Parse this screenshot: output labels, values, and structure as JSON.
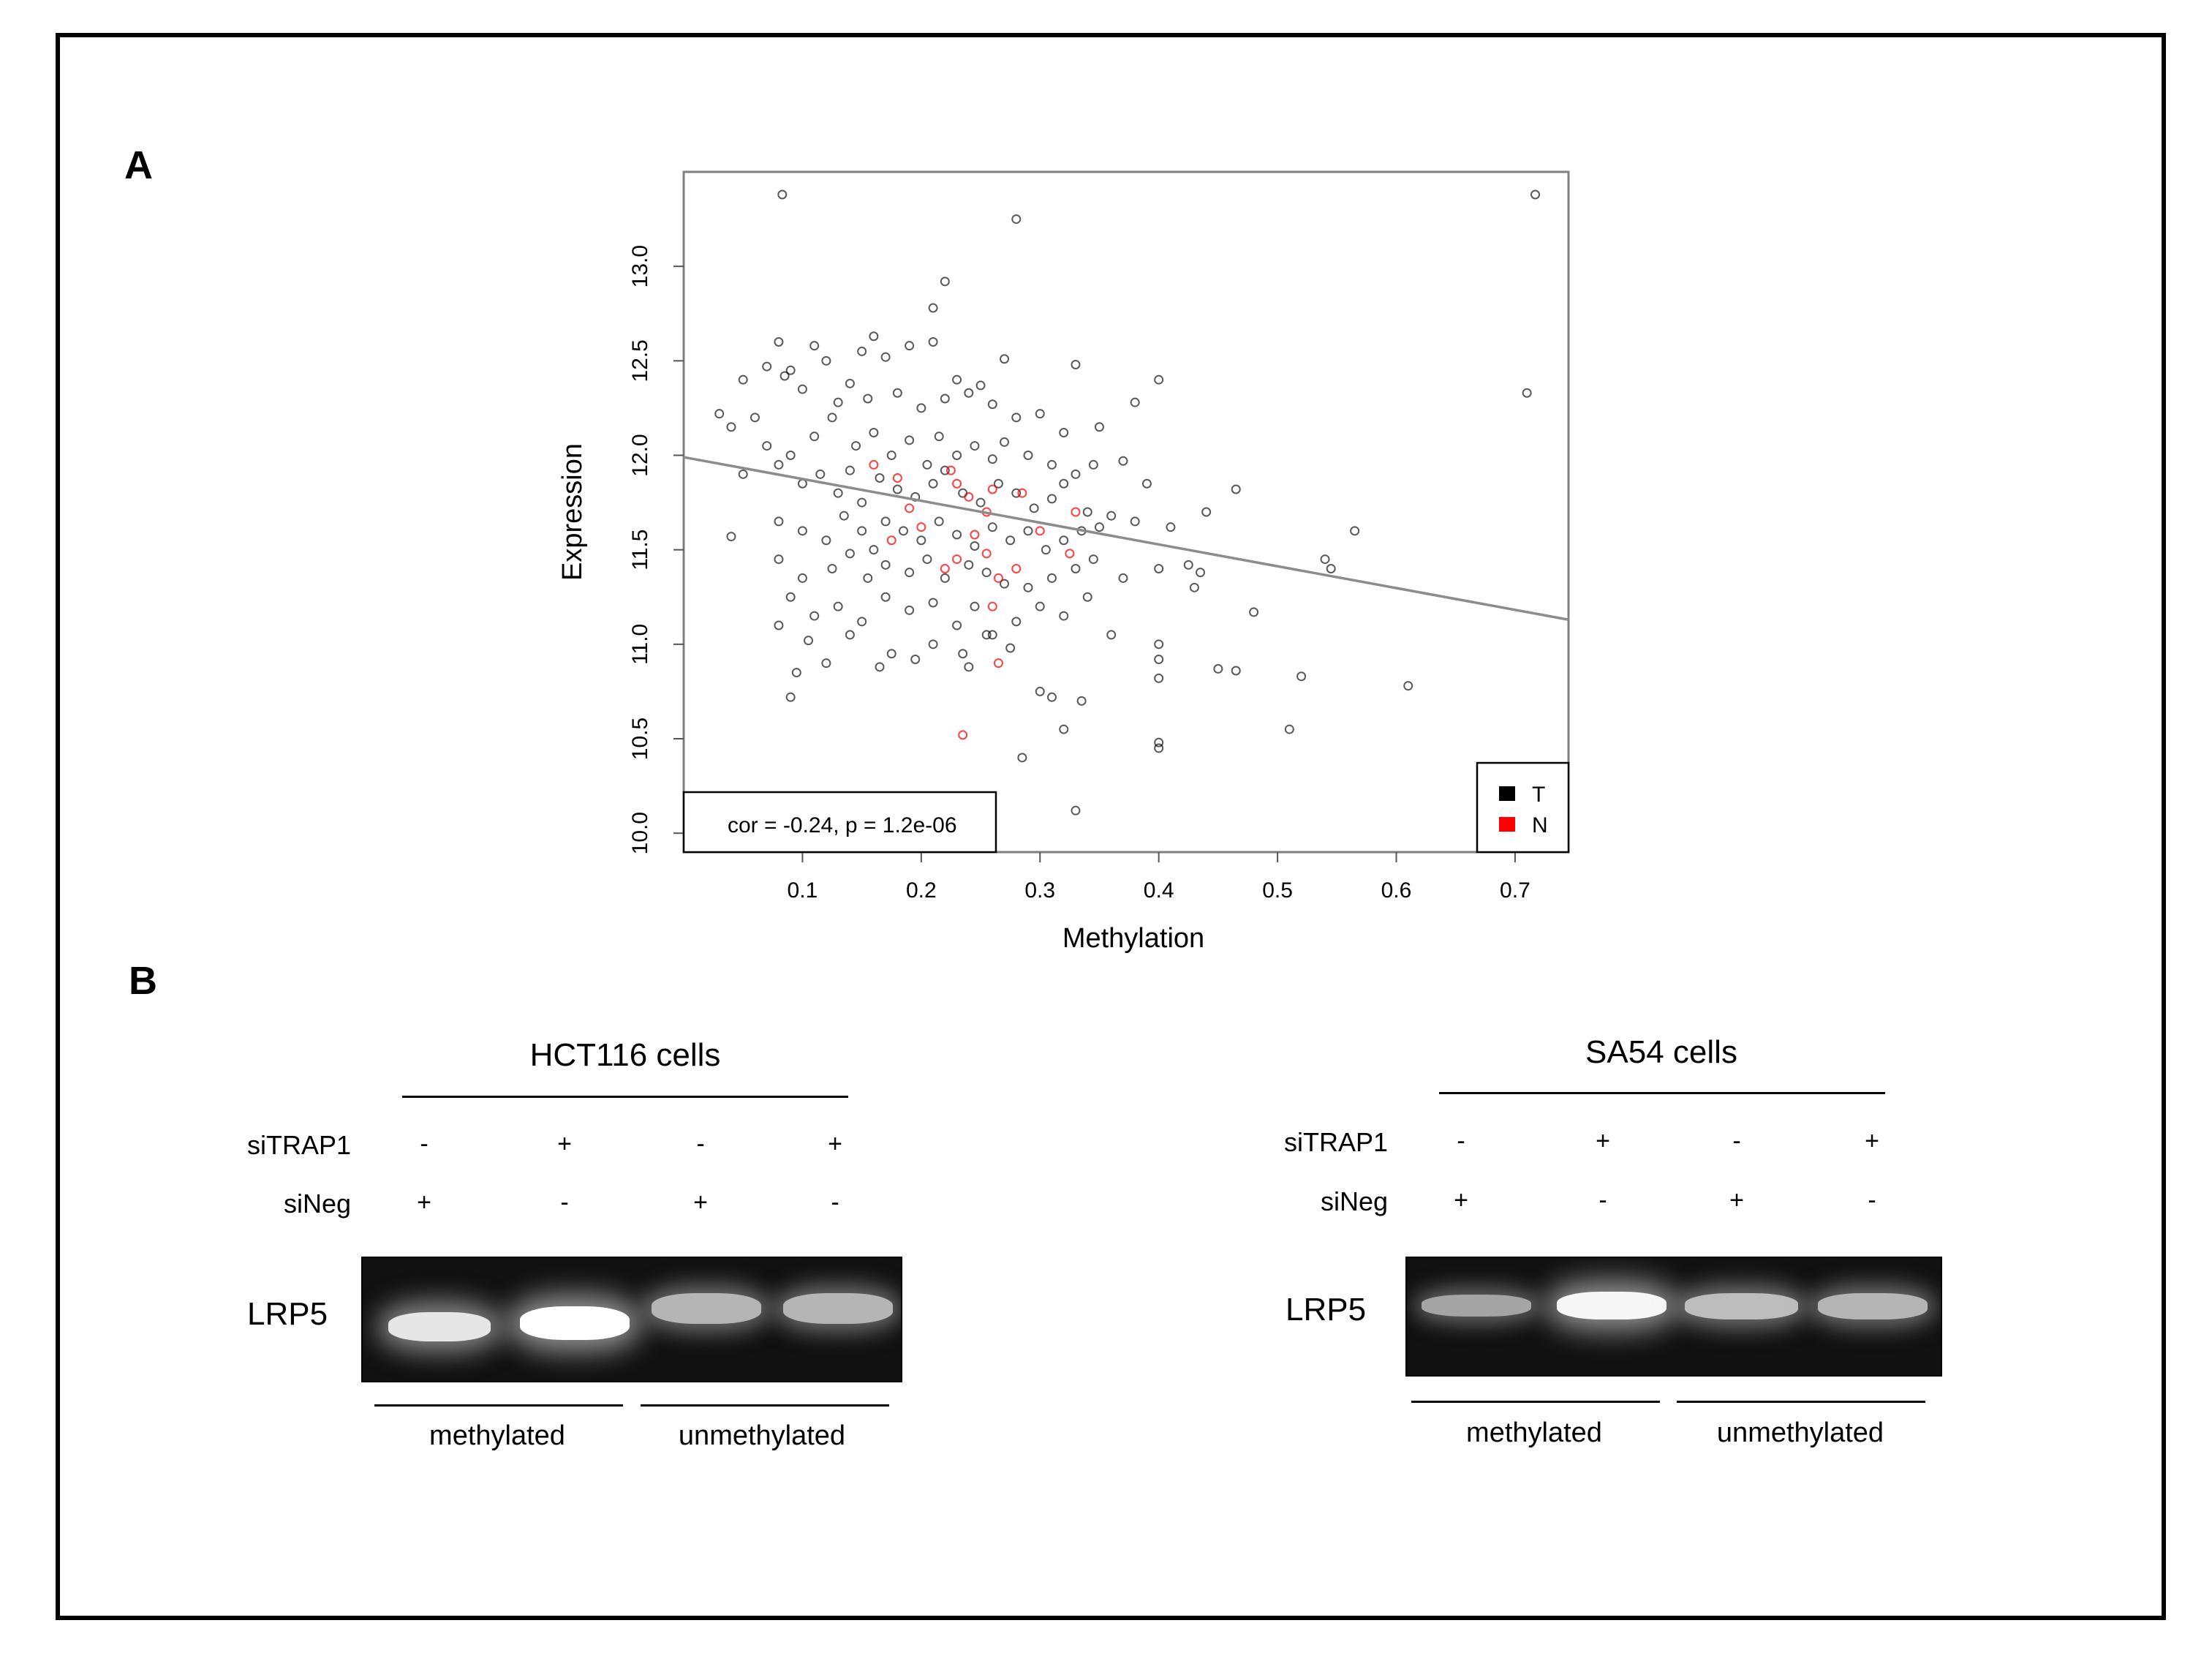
{
  "panels": {
    "a": "A",
    "b": "B"
  },
  "chart_data": {
    "type": "scatter",
    "title": "",
    "xlabel": "Methylation",
    "ylabel": "Expression",
    "xlim": [
      0.0,
      0.745
    ],
    "ylim": [
      9.9,
      13.5
    ],
    "x_ticks": [
      "0.1",
      "0.2",
      "0.3",
      "0.4",
      "0.5",
      "0.6",
      "0.7"
    ],
    "y_ticks": [
      "10.0",
      "10.5",
      "11.0",
      "11.5",
      "12.0",
      "12.5",
      "13.0"
    ],
    "annotation": "cor = -0.24, p = 1.2e-06",
    "legend": {
      "placement": "bottom-right",
      "entries": [
        {
          "label": "T",
          "color": "#000000"
        },
        {
          "label": "N",
          "color": "#ff0000"
        }
      ]
    },
    "trend_line": {
      "x": [
        0.0,
        0.745
      ],
      "y": [
        11.99,
        11.13
      ]
    },
    "series": [
      {
        "name": "T",
        "color": "#000000",
        "points": [
          [
            0.083,
            13.38
          ],
          [
            0.28,
            13.25
          ],
          [
            0.717,
            13.38
          ],
          [
            0.22,
            12.92
          ],
          [
            0.21,
            12.78
          ],
          [
            0.71,
            12.33
          ],
          [
            0.08,
            12.6
          ],
          [
            0.11,
            12.58
          ],
          [
            0.16,
            12.63
          ],
          [
            0.19,
            12.58
          ],
          [
            0.21,
            12.6
          ],
          [
            0.27,
            12.51
          ],
          [
            0.07,
            12.47
          ],
          [
            0.09,
            12.45
          ],
          [
            0.12,
            12.5
          ],
          [
            0.15,
            12.55
          ],
          [
            0.17,
            12.52
          ],
          [
            0.23,
            12.4
          ],
          [
            0.25,
            12.37
          ],
          [
            0.33,
            12.48
          ],
          [
            0.4,
            12.4
          ],
          [
            0.03,
            12.22
          ],
          [
            0.05,
            12.4
          ],
          [
            0.06,
            12.2
          ],
          [
            0.085,
            12.42
          ],
          [
            0.1,
            12.35
          ],
          [
            0.13,
            12.28
          ],
          [
            0.14,
            12.38
          ],
          [
            0.155,
            12.3
          ],
          [
            0.18,
            12.33
          ],
          [
            0.2,
            12.25
          ],
          [
            0.22,
            12.3
          ],
          [
            0.24,
            12.33
          ],
          [
            0.26,
            12.27
          ],
          [
            0.28,
            12.2
          ],
          [
            0.3,
            12.22
          ],
          [
            0.32,
            12.12
          ],
          [
            0.35,
            12.15
          ],
          [
            0.38,
            12.28
          ],
          [
            0.04,
            12.15
          ],
          [
            0.07,
            12.05
          ],
          [
            0.09,
            12.0
          ],
          [
            0.11,
            12.1
          ],
          [
            0.125,
            12.2
          ],
          [
            0.145,
            12.05
          ],
          [
            0.16,
            12.12
          ],
          [
            0.175,
            12.0
          ],
          [
            0.19,
            12.08
          ],
          [
            0.205,
            11.95
          ],
          [
            0.215,
            12.1
          ],
          [
            0.23,
            12.0
          ],
          [
            0.245,
            12.05
          ],
          [
            0.26,
            11.98
          ],
          [
            0.27,
            12.07
          ],
          [
            0.29,
            12.0
          ],
          [
            0.31,
            11.95
          ],
          [
            0.33,
            11.9
          ],
          [
            0.345,
            11.95
          ],
          [
            0.37,
            11.97
          ],
          [
            0.39,
            11.85
          ],
          [
            0.05,
            11.9
          ],
          [
            0.08,
            11.95
          ],
          [
            0.1,
            11.85
          ],
          [
            0.115,
            11.9
          ],
          [
            0.13,
            11.8
          ],
          [
            0.14,
            11.92
          ],
          [
            0.15,
            11.75
          ],
          [
            0.165,
            11.88
          ],
          [
            0.18,
            11.82
          ],
          [
            0.195,
            11.78
          ],
          [
            0.21,
            11.85
          ],
          [
            0.22,
            11.92
          ],
          [
            0.235,
            11.8
          ],
          [
            0.25,
            11.75
          ],
          [
            0.265,
            11.85
          ],
          [
            0.28,
            11.8
          ],
          [
            0.295,
            11.72
          ],
          [
            0.31,
            11.77
          ],
          [
            0.32,
            11.85
          ],
          [
            0.34,
            11.7
          ],
          [
            0.36,
            11.68
          ],
          [
            0.38,
            11.65
          ],
          [
            0.465,
            11.82
          ],
          [
            0.44,
            11.7
          ],
          [
            0.04,
            11.57
          ],
          [
            0.08,
            11.65
          ],
          [
            0.1,
            11.6
          ],
          [
            0.12,
            11.55
          ],
          [
            0.135,
            11.68
          ],
          [
            0.15,
            11.6
          ],
          [
            0.16,
            11.5
          ],
          [
            0.17,
            11.65
          ],
          [
            0.185,
            11.6
          ],
          [
            0.2,
            11.55
          ],
          [
            0.215,
            11.65
          ],
          [
            0.23,
            11.58
          ],
          [
            0.245,
            11.52
          ],
          [
            0.26,
            11.62
          ],
          [
            0.275,
            11.55
          ],
          [
            0.29,
            11.6
          ],
          [
            0.305,
            11.5
          ],
          [
            0.32,
            11.55
          ],
          [
            0.335,
            11.6
          ],
          [
            0.35,
            11.62
          ],
          [
            0.41,
            11.62
          ],
          [
            0.565,
            11.6
          ],
          [
            0.08,
            11.45
          ],
          [
            0.1,
            11.35
          ],
          [
            0.125,
            11.4
          ],
          [
            0.14,
            11.48
          ],
          [
            0.155,
            11.35
          ],
          [
            0.17,
            11.42
          ],
          [
            0.19,
            11.38
          ],
          [
            0.205,
            11.45
          ],
          [
            0.22,
            11.35
          ],
          [
            0.24,
            11.42
          ],
          [
            0.255,
            11.38
          ],
          [
            0.27,
            11.32
          ],
          [
            0.29,
            11.3
          ],
          [
            0.31,
            11.35
          ],
          [
            0.33,
            11.4
          ],
          [
            0.345,
            11.45
          ],
          [
            0.37,
            11.35
          ],
          [
            0.4,
            11.4
          ],
          [
            0.425,
            11.42
          ],
          [
            0.435,
            11.38
          ],
          [
            0.54,
            11.45
          ],
          [
            0.545,
            11.4
          ],
          [
            0.09,
            11.25
          ],
          [
            0.11,
            11.15
          ],
          [
            0.13,
            11.2
          ],
          [
            0.15,
            11.12
          ],
          [
            0.17,
            11.25
          ],
          [
            0.19,
            11.18
          ],
          [
            0.21,
            11.22
          ],
          [
            0.23,
            11.1
          ],
          [
            0.245,
            11.2
          ],
          [
            0.26,
            11.05
          ],
          [
            0.28,
            11.12
          ],
          [
            0.3,
            11.2
          ],
          [
            0.32,
            11.15
          ],
          [
            0.34,
            11.25
          ],
          [
            0.36,
            11.05
          ],
          [
            0.43,
            11.3
          ],
          [
            0.48,
            11.17
          ],
          [
            0.08,
            11.1
          ],
          [
            0.105,
            11.02
          ],
          [
            0.14,
            11.05
          ],
          [
            0.175,
            10.95
          ],
          [
            0.21,
            11.0
          ],
          [
            0.235,
            10.95
          ],
          [
            0.255,
            11.05
          ],
          [
            0.275,
            10.98
          ],
          [
            0.4,
            11.0
          ],
          [
            0.4,
            10.92
          ],
          [
            0.095,
            10.85
          ],
          [
            0.12,
            10.9
          ],
          [
            0.165,
            10.88
          ],
          [
            0.195,
            10.92
          ],
          [
            0.24,
            10.88
          ],
          [
            0.4,
            10.82
          ],
          [
            0.45,
            10.87
          ],
          [
            0.465,
            10.86
          ],
          [
            0.52,
            10.83
          ],
          [
            0.61,
            10.78
          ],
          [
            0.09,
            10.72
          ],
          [
            0.3,
            10.75
          ],
          [
            0.31,
            10.72
          ],
          [
            0.335,
            10.7
          ],
          [
            0.32,
            10.55
          ],
          [
            0.285,
            10.4
          ],
          [
            0.4,
            10.48
          ],
          [
            0.4,
            10.45
          ],
          [
            0.51,
            10.55
          ],
          [
            0.33,
            10.12
          ]
        ]
      },
      {
        "name": "N",
        "color": "#ff0000",
        "points": [
          [
            0.16,
            11.95
          ],
          [
            0.18,
            11.88
          ],
          [
            0.225,
            11.92
          ],
          [
            0.23,
            11.85
          ],
          [
            0.24,
            11.78
          ],
          [
            0.26,
            11.82
          ],
          [
            0.285,
            11.8
          ],
          [
            0.33,
            11.7
          ],
          [
            0.19,
            11.72
          ],
          [
            0.255,
            11.7
          ],
          [
            0.2,
            11.62
          ],
          [
            0.245,
            11.58
          ],
          [
            0.3,
            11.6
          ],
          [
            0.175,
            11.55
          ],
          [
            0.255,
            11.48
          ],
          [
            0.325,
            11.48
          ],
          [
            0.22,
            11.4
          ],
          [
            0.23,
            11.45
          ],
          [
            0.265,
            11.35
          ],
          [
            0.26,
            11.2
          ],
          [
            0.28,
            11.4
          ],
          [
            0.265,
            10.9
          ],
          [
            0.235,
            10.52
          ]
        ]
      }
    ]
  },
  "gels": [
    {
      "title": "HCT116 cells",
      "row1": "siTRAP1",
      "row2": "siNeg",
      "row1_signs": [
        "-",
        "+",
        "-",
        "+"
      ],
      "row2_signs": [
        "+",
        "-",
        "+",
        "-"
      ],
      "marker": "LRP5",
      "group_left": "methylated",
      "group_right": "unmethylated",
      "band_intensity": [
        0.85,
        1.0,
        0.55,
        0.55
      ]
    },
    {
      "title": "SA54 cells",
      "row1": "siTRAP1",
      "row2": "siNeg",
      "row1_signs": [
        "-",
        "+",
        "-",
        "+"
      ],
      "row2_signs": [
        "+",
        "-",
        "+",
        "-"
      ],
      "marker": "LRP5",
      "group_left": "methylated",
      "group_right": "unmethylated",
      "band_intensity": [
        0.45,
        0.95,
        0.6,
        0.55
      ]
    }
  ]
}
